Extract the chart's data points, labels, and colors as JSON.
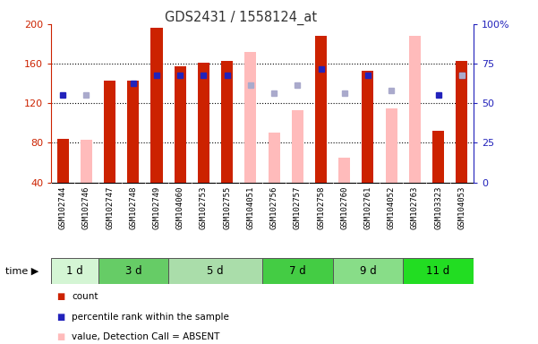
{
  "title": "GDS2431 / 1558124_at",
  "samples": [
    "GSM102744",
    "GSM102746",
    "GSM102747",
    "GSM102748",
    "GSM102749",
    "GSM104060",
    "GSM102753",
    "GSM102755",
    "GSM104051",
    "GSM102756",
    "GSM102757",
    "GSM102758",
    "GSM102760",
    "GSM102761",
    "GSM104052",
    "GSM102763",
    "GSM103323",
    "GSM104053"
  ],
  "red_bars": [
    84,
    null,
    143,
    143,
    196,
    157,
    161,
    163,
    null,
    null,
    null,
    188,
    null,
    153,
    null,
    null,
    92,
    163
  ],
  "pink_bars": [
    null,
    83,
    null,
    null,
    null,
    null,
    null,
    null,
    172,
    90,
    113,
    null,
    65,
    null,
    115,
    188,
    null,
    null
  ],
  "blue_squares": [
    128,
    null,
    null,
    140,
    148,
    148,
    148,
    148,
    null,
    null,
    null,
    155,
    null,
    148,
    null,
    null,
    128,
    148
  ],
  "lavender_squares": [
    null,
    128,
    null,
    null,
    null,
    null,
    null,
    null,
    138,
    130,
    138,
    null,
    130,
    null,
    133,
    null,
    null,
    148
  ],
  "ylim": [
    40,
    200
  ],
  "y2lim": [
    0,
    100
  ],
  "yticks": [
    40,
    80,
    120,
    160,
    200
  ],
  "y2ticks": [
    0,
    25,
    50,
    75,
    100
  ],
  "groups": [
    {
      "label": "1 d",
      "start": 0,
      "end": 2,
      "color": "#d4f5d4"
    },
    {
      "label": "3 d",
      "start": 2,
      "end": 5,
      "color": "#66cc66"
    },
    {
      "label": "5 d",
      "start": 5,
      "end": 9,
      "color": "#aaddaa"
    },
    {
      "label": "7 d",
      "start": 9,
      "end": 12,
      "color": "#44cc44"
    },
    {
      "label": "9 d",
      "start": 12,
      "end": 15,
      "color": "#88dd88"
    },
    {
      "label": "11 d",
      "start": 15,
      "end": 18,
      "color": "#22dd22"
    }
  ],
  "red_color": "#cc2200",
  "pink_color": "#ffbbbb",
  "blue_color": "#2222bb",
  "lavender_color": "#aaaacc",
  "xticklabel_bg": "#d0d0d0",
  "bar_width": 0.5
}
